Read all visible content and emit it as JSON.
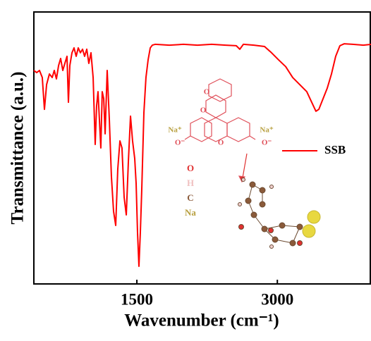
{
  "chart_data": {
    "type": "line",
    "xlabel": "Wavenumber (cm⁻¹)",
    "ylabel": "Transmittance (a.u.)",
    "x": [
      400,
      430,
      460,
      490,
      513,
      536,
      566,
      596,
      618,
      641,
      664,
      686,
      709,
      731,
      754,
      769,
      784,
      807,
      829,
      852,
      874,
      897,
      920,
      942,
      965,
      987,
      1010,
      1033,
      1055,
      1070,
      1085,
      1100,
      1115,
      1130,
      1146,
      1161,
      1183,
      1206,
      1228,
      1251,
      1274,
      1296,
      1319,
      1341,
      1364,
      1387,
      1409,
      1432,
      1454,
      1477,
      1492,
      1507,
      1522,
      1537,
      1552,
      1575,
      1597,
      1620,
      1643,
      1665,
      1695,
      1846,
      1997,
      2147,
      2298,
      2448,
      2561,
      2599,
      2637,
      2750,
      2863,
      2938,
      3013,
      3089,
      3164,
      3239,
      3314,
      3367,
      3412,
      3443,
      3488,
      3533,
      3578,
      3623,
      3668,
      3713,
      3804,
      3917,
      4000
    ],
    "series": [
      {
        "name": "SSB",
        "color": "#ff0000",
        "values": [
          78.5,
          77.7,
          78.5,
          75.9,
          64.2,
          73.3,
          77.2,
          75.9,
          78.5,
          75.4,
          80.3,
          82.9,
          78.5,
          81.1,
          83.7,
          66.8,
          80.3,
          85.0,
          86.8,
          83.7,
          86.8,
          85.0,
          86.3,
          83.7,
          86.3,
          81.1,
          85.0,
          75.9,
          51.3,
          65.5,
          70.7,
          60.4,
          50.0,
          70.7,
          68.1,
          55.2,
          78.5,
          60.4,
          39.6,
          26.7,
          21.5,
          42.2,
          52.6,
          50.0,
          31.9,
          25.4,
          44.8,
          61.7,
          52.6,
          46.1,
          37.0,
          18.9,
          6.5,
          18.9,
          34.5,
          63.0,
          75.9,
          82.4,
          86.8,
          87.8,
          88.1,
          87.8,
          88.1,
          87.8,
          88.1,
          87.8,
          87.6,
          86.3,
          88.1,
          87.8,
          87.3,
          85.0,
          82.4,
          79.9,
          75.9,
          73.3,
          70.7,
          66.8,
          63.5,
          64.2,
          68.1,
          72.0,
          77.2,
          83.7,
          87.6,
          88.3,
          88.1,
          87.8,
          88.1
        ]
      }
    ],
    "xlim": [
      400,
      4000
    ],
    "xticks": [
      1500,
      3000
    ],
    "ylim": [
      0,
      100
    ],
    "legend": "right",
    "annotations": [
      "O",
      "O",
      "O",
      "Na⁺",
      "Na⁺",
      "O⁻",
      "O⁻",
      "O",
      "H",
      "C",
      "Na"
    ]
  }
}
